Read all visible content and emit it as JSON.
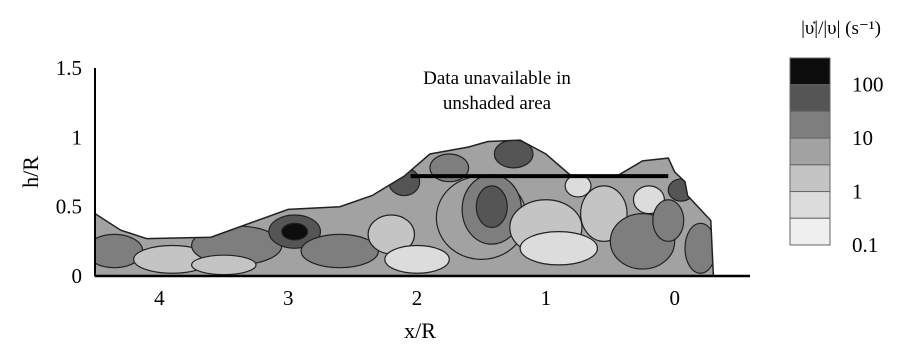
{
  "chart_data": {
    "type": "heatmap",
    "xlabel": "x/R",
    "ylabel": "h/R",
    "x_ticks": [
      "4",
      "3",
      "2",
      "1",
      "0"
    ],
    "y_ticks": [
      "1.5",
      "1",
      "0.5",
      "0"
    ],
    "xlim": [
      4.5,
      -0.6
    ],
    "ylim": [
      0,
      1.5
    ],
    "annotation": [
      "Data unavailable in",
      "unshaded area"
    ],
    "colorbar": {
      "title": "|υ̇|/|υ| (s⁻¹)",
      "scale": "log",
      "tick_labels": [
        "100",
        "10",
        "1",
        "0.1"
      ],
      "levels": [
        {
          "range": ">100",
          "color": "#0d0d0d"
        },
        {
          "range": "30-100",
          "color": "#555555"
        },
        {
          "range": "10-30",
          "color": "#7e7e7e"
        },
        {
          "range": "3-10",
          "color": "#a2a2a2"
        },
        {
          "range": "1-3",
          "color": "#c4c4c4"
        },
        {
          "range": "0.3-1",
          "color": "#dcdcdc"
        },
        {
          "range": "0.1-0.3",
          "color": "#efefef"
        }
      ]
    },
    "terrain_profile": [
      {
        "x": 4.5,
        "h": 0.45
      },
      {
        "x": 4.3,
        "h": 0.33
      },
      {
        "x": 4.1,
        "h": 0.27
      },
      {
        "x": 3.6,
        "h": 0.28
      },
      {
        "x": 3.0,
        "h": 0.48
      },
      {
        "x": 2.6,
        "h": 0.5
      },
      {
        "x": 2.35,
        "h": 0.58
      },
      {
        "x": 2.1,
        "h": 0.72
      },
      {
        "x": 1.9,
        "h": 0.88
      },
      {
        "x": 1.6,
        "h": 0.93
      },
      {
        "x": 1.45,
        "h": 0.97
      },
      {
        "x": 1.2,
        "h": 0.98
      },
      {
        "x": 1.0,
        "h": 0.88
      },
      {
        "x": 0.8,
        "h": 0.72
      },
      {
        "x": 0.45,
        "h": 0.72
      },
      {
        "x": 0.25,
        "h": 0.83
      },
      {
        "x": 0.05,
        "h": 0.85
      },
      {
        "x": 0.0,
        "h": 0.75
      },
      {
        "x": -0.08,
        "h": 0.68
      },
      {
        "x": -0.1,
        "h": 0.58
      },
      {
        "x": -0.28,
        "h": 0.4
      },
      {
        "x": -0.3,
        "h": 0.0
      }
    ],
    "horizontal_bar": {
      "x_start": 2.05,
      "x_end": 0.05,
      "h": 0.72
    }
  }
}
